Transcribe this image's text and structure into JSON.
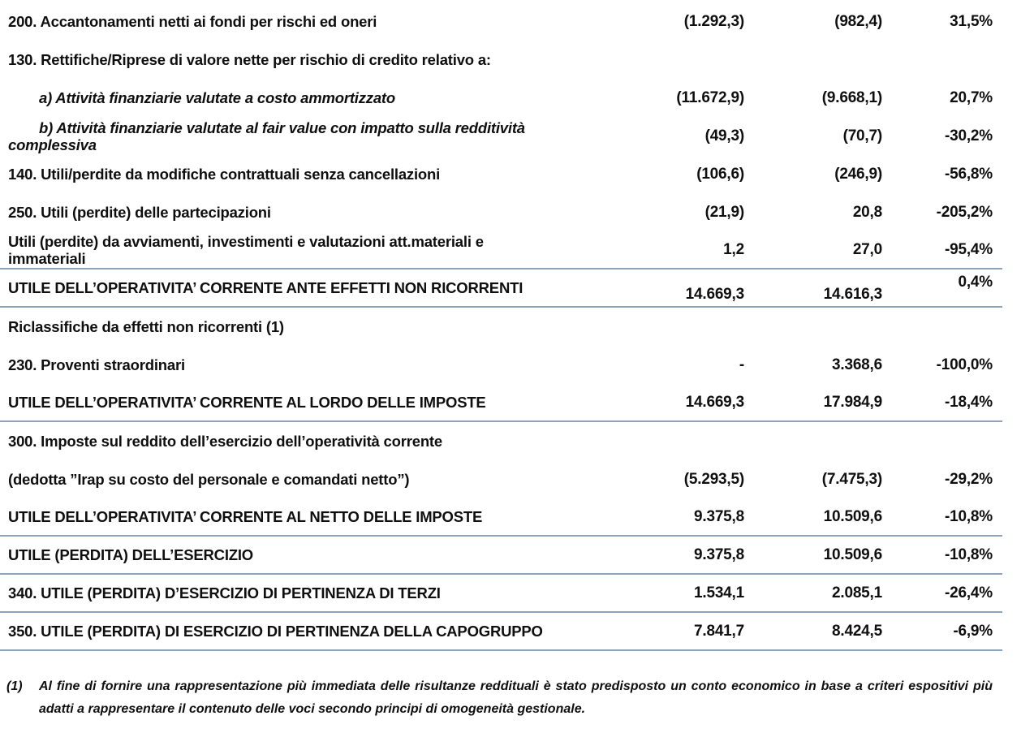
{
  "table": {
    "rows": [
      {
        "label": "200. Accantonamenti netti ai fondi per rischi ed oneri",
        "v1": "(1.292,3)",
        "v2": "(982,4)",
        "pct": "31,5%"
      },
      {
        "label": "130. Rettifiche/Riprese di valore nette per rischio di credito relativo a:",
        "v1": "",
        "v2": "",
        "pct": ""
      },
      {
        "label": "a) Attività finanziarie valutate a costo ammortizzato",
        "v1": "(11.672,9)",
        "v2": "(9.668,1)",
        "pct": "20,7%",
        "indent": true
      },
      {
        "label": "b) Attività finanziarie valutate al fair value con impatto sulla redditività\ncomplessiva",
        "v1": "(49,3)",
        "v2": "(70,7)",
        "pct": "-30,2%",
        "indent": true
      },
      {
        "label": "140. Utili/perdite da modifiche contrattuali senza cancellazioni",
        "v1": "(106,6)",
        "v2": "(246,9)",
        "pct": "-56,8%"
      },
      {
        "label": "250. Utili (perdite) delle partecipazioni",
        "v1": "(21,9)",
        "v2": "20,8",
        "pct": "-205,2%"
      },
      {
        "label": "Utili (perdite) da avviamenti, investimenti e valutazioni att.materiali e\nimmateriali",
        "v1": "1,2",
        "v2": "27,0",
        "pct": "-95,4%",
        "border": true
      },
      {
        "label": "UTILE DELL’OPERATIVITA’ CORRENTE ANTE EFFETTI NON RICORRENTI",
        "v1": "14.669,3",
        "v2": "14.616,3",
        "pct": "0,4%",
        "border": true,
        "stagger": true
      },
      {
        "label": "Riclassifiche da effetti non ricorrenti (1)",
        "v1": "",
        "v2": "",
        "pct": ""
      },
      {
        "label": "230. Proventi straordinari",
        "v1": "-",
        "v2": "3.368,6",
        "pct": "-100,0%"
      },
      {
        "label": "UTILE DELL’OPERATIVITA’ CORRENTE AL LORDO DELLE IMPOSTE",
        "v1": "14.669,3",
        "v2": "17.984,9",
        "pct": "-18,4%",
        "border": true
      },
      {
        "label": "300. Imposte sul reddito dell’esercizio dell’operatività corrente",
        "v1": "",
        "v2": "",
        "pct": ""
      },
      {
        "label": "(dedotta ”Irap su costo del personale e comandati netto”)",
        "v1": "(5.293,5)",
        "v2": "(7.475,3)",
        "pct": "-29,2%"
      },
      {
        "label": "UTILE DELL’OPERATIVITA’ CORRENTE AL NETTO DELLE IMPOSTE",
        "v1": "9.375,8",
        "v2": "10.509,6",
        "pct": "-10,8%",
        "border": true
      },
      {
        "label": "UTILE (PERDITA) DELL’ESERCIZIO",
        "v1": "9.375,8",
        "v2": "10.509,6",
        "pct": "-10,8%",
        "border": true
      },
      {
        "label": "340. UTILE (PERDITA) D’ESERCIZIO DI PERTINENZA DI TERZI",
        "v1": "1.534,1",
        "v2": "2.085,1",
        "pct": "-26,4%",
        "border": true
      },
      {
        "label": "350. UTILE (PERDITA) DI ESERCIZIO DI PERTINENZA DELLA CAPOGRUPPO",
        "v1": "7.841,7",
        "v2": "8.424,5",
        "pct": "-6,9%",
        "border": true
      }
    ]
  },
  "footnote": {
    "marker": "(1)",
    "text": "Al fine di fornire una rappresentazione più immediata delle risultanze reddituali è stato predisposto un conto economico in base a criteri espositivi più adatti a rappresentare il contenuto delle voci secondo principi di omogeneità gestionale."
  },
  "colors": {
    "separator_line": "#8da3bb",
    "text": "#0f0f0f"
  }
}
